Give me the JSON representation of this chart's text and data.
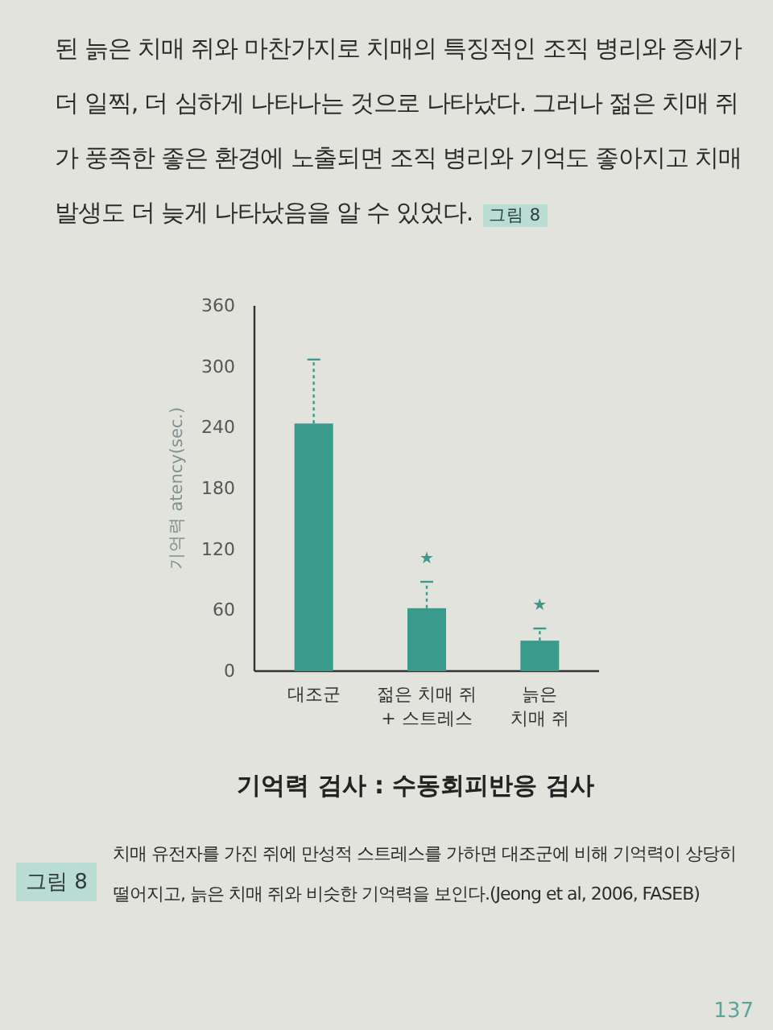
{
  "chart_data": {
    "type": "bar",
    "title": "기억력 검사 : 수동회피반응 검사",
    "ylabel": "기억력 atency(sec.)",
    "categories": [
      "대조군",
      "젊은 치매 쥐\n+ 스트레스",
      "늙은\n치매 쥐"
    ],
    "values": [
      244,
      62,
      30
    ],
    "color": "#3a9a8c",
    "errors": [
      [
        244,
        307
      ],
      [
        62,
        88
      ],
      [
        30,
        42
      ]
    ],
    "ylim": [
      0,
      360
    ],
    "yticks": [
      0,
      60,
      120,
      180,
      240,
      300,
      360
    ],
    "annotations": [
      "된 늙은 치매 쥐와 마찬가지로 치매의 특징적인 조직 병리와 증세가 더 일찍, 더 심하게 나타나는 것으로 나타났다. 그러나 젊은 치매 쥐가 풍족한 좋은 환경에 노출되면 조직 병리와 기억도 좋아지고 치매 발생도 더 늦게 나타났음을 알 수 있었다.",
      "그림 8",
      "★",
      "★",
      "그림 8",
      "치매 유전자를 가진 쥐에 만성적 스트레스를 가하면 대조군에 비해 기억력이 상당히 떨어지고, 늙은 치매 쥐와 비슷한 기억력을 보인다.(Jeong et al, 2006, FASEB)",
      "137"
    ]
  }
}
